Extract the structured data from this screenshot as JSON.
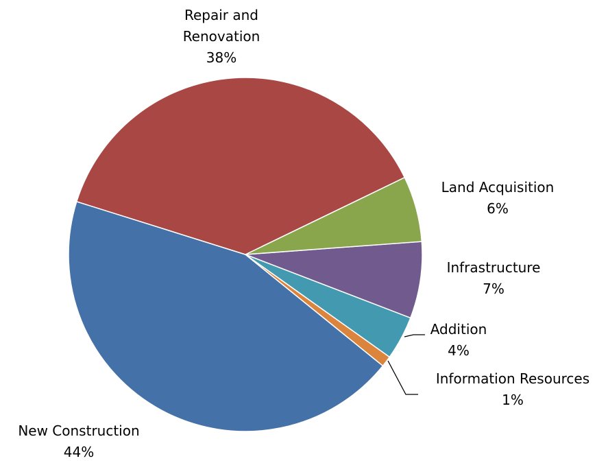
{
  "chart_data": {
    "type": "pie",
    "categories": [
      "Repair and Renovation",
      "Land Acquisition",
      "Infrastructure",
      "Addition",
      "Information Resources",
      "New Construction"
    ],
    "values": [
      38,
      6,
      7,
      4,
      1,
      44
    ],
    "value_labels": [
      "38%",
      "6%",
      "7%",
      "4%",
      "1%",
      "44%"
    ],
    "colors": [
      "#a84744",
      "#8aa64d",
      "#715a8e",
      "#4299b0",
      "#db843d",
      "#4472a8"
    ]
  }
}
